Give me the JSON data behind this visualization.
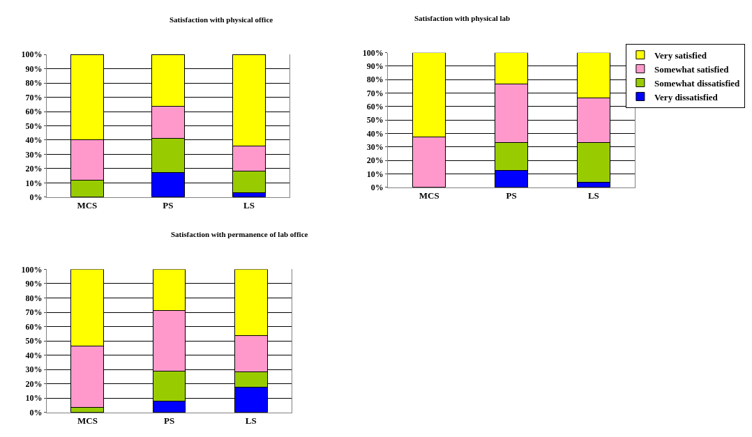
{
  "chart_data": [
    {
      "type": "bar",
      "title": "Satisfaction with physical office",
      "categories": [
        "MCS",
        "PS",
        "LS"
      ],
      "stacked": true,
      "ylim": [
        0,
        100
      ],
      "yticks": [
        {
          "value": 0,
          "label": "0%"
        },
        {
          "value": 10,
          "label": "10%"
        },
        {
          "value": 20,
          "label": "20%"
        },
        {
          "value": 30,
          "label": "30%"
        },
        {
          "value": 40,
          "label": "40%"
        },
        {
          "value": 50,
          "label": "50%"
        },
        {
          "value": 60,
          "label": "60%"
        },
        {
          "value": 70,
          "label": "70%"
        },
        {
          "value": 80,
          "label": "80%"
        },
        {
          "value": 90,
          "label": "90%"
        },
        {
          "value": 100,
          "label": "100%"
        }
      ],
      "grid": "y",
      "legend": false,
      "series": [
        {
          "color": "#0000ff",
          "values": [
            0,
            17.5,
            3
          ]
        },
        {
          "color": "#99cc00",
          "values": [
            12,
            23.5,
            15
          ]
        },
        {
          "color": "#ff99cc",
          "values": [
            28,
            22.5,
            18
          ]
        },
        {
          "color": "#ffff00",
          "values": [
            60,
            36.5,
            64
          ]
        }
      ]
    },
    {
      "type": "bar",
      "title": "Satisfaction with physical lab",
      "categories": [
        "MCS",
        "PS",
        "LS"
      ],
      "stacked": true,
      "ylim": [
        0,
        100
      ],
      "yticks": [
        {
          "value": 0,
          "label": "0%"
        },
        {
          "value": 10,
          "label": "10%"
        },
        {
          "value": 20,
          "label": "20%"
        },
        {
          "value": 30,
          "label": "30%"
        },
        {
          "value": 40,
          "label": "40%"
        },
        {
          "value": 50,
          "label": "50%"
        },
        {
          "value": 60,
          "label": "60%"
        },
        {
          "value": 70,
          "label": "70%"
        },
        {
          "value": 80,
          "label": "80%"
        },
        {
          "value": 90,
          "label": "90%"
        },
        {
          "value": 100,
          "label": "100%"
        }
      ],
      "grid": "y",
      "legend": "top right",
      "series": [
        {
          "name": "Very dissatisfied",
          "color": "#0000ff",
          "values": [
            0,
            12.5,
            3.7
          ]
        },
        {
          "name": "Somewhat dissatisfied",
          "color": "#99cc00",
          "values": [
            0,
            20.8,
            29.6
          ]
        },
        {
          "name": "Somewhat satisfied",
          "color": "#ff99cc",
          "values": [
            37.5,
            43.3,
            33.3
          ]
        },
        {
          "name": "Very satisfied",
          "color": "#ffff00",
          "values": [
            62.5,
            23.4,
            33.4
          ]
        }
      ]
    },
    {
      "type": "bar",
      "title": "Satisfaction with permanence of lab office",
      "categories": [
        "MCS",
        "PS",
        "LS"
      ],
      "stacked": true,
      "ylim": [
        0,
        100
      ],
      "yticks": [
        {
          "value": 0,
          "label": "0%"
        },
        {
          "value": 10,
          "label": "10%"
        },
        {
          "value": 20,
          "label": "20%"
        },
        {
          "value": 30,
          "label": "30%"
        },
        {
          "value": 40,
          "label": "40%"
        },
        {
          "value": 50,
          "label": "50%"
        },
        {
          "value": 60,
          "label": "60%"
        },
        {
          "value": 70,
          "label": "70%"
        },
        {
          "value": 80,
          "label": "80%"
        },
        {
          "value": 90,
          "label": "90%"
        },
        {
          "value": 100,
          "label": "100%"
        }
      ],
      "grid": "y",
      "legend": false,
      "series": [
        {
          "color": "#0000ff",
          "values": [
            0,
            8,
            17.6
          ]
        },
        {
          "color": "#99cc00",
          "values": [
            3.6,
            21,
            11
          ]
        },
        {
          "color": "#ff99cc",
          "values": [
            42.8,
            42,
            25.3
          ]
        },
        {
          "color": "#ffff00",
          "values": [
            53.6,
            29,
            46.1
          ]
        }
      ]
    }
  ]
}
